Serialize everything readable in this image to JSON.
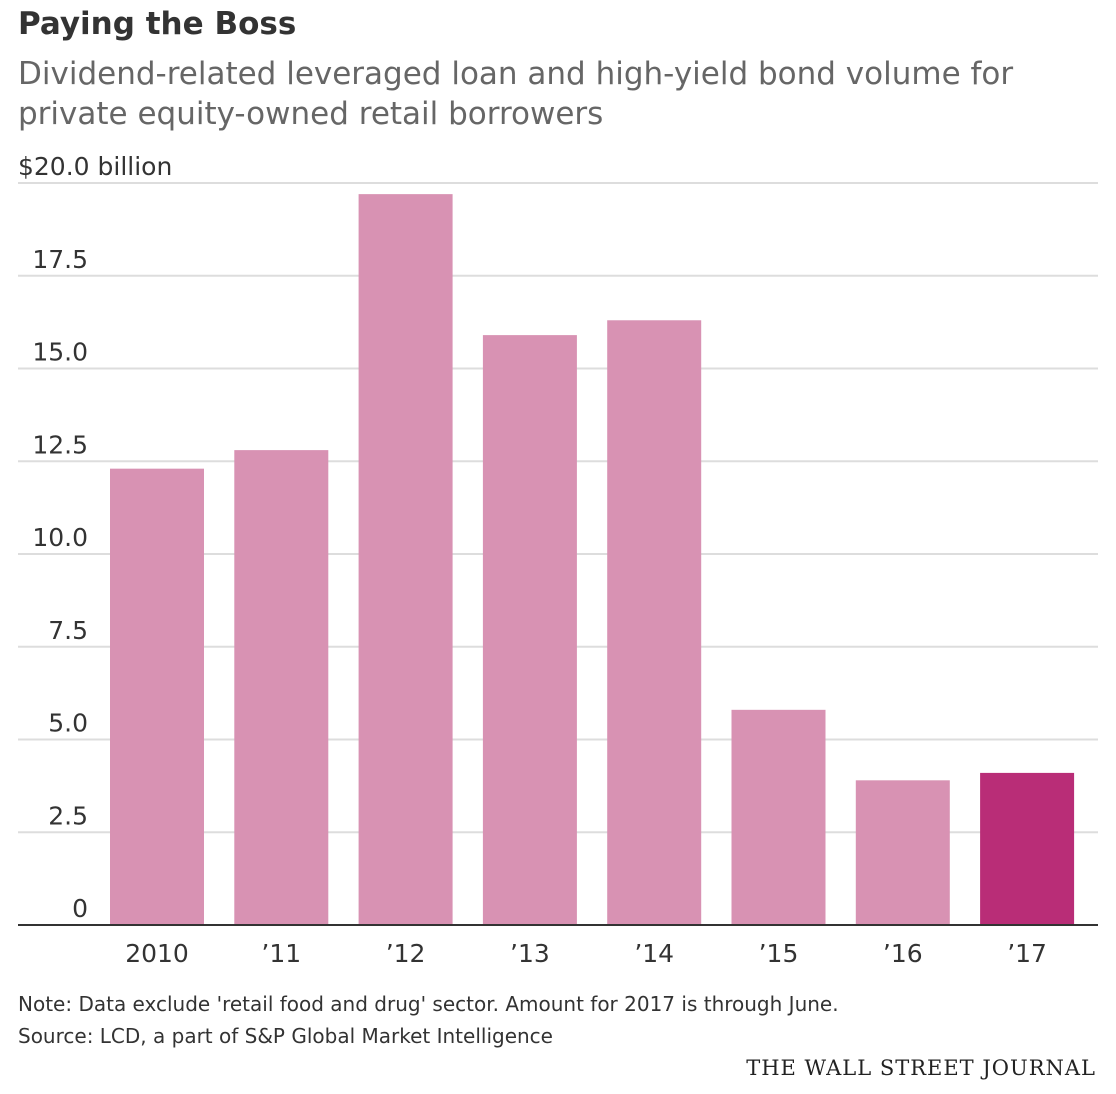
{
  "header": {
    "title": "Paying the Boss",
    "subtitle": "Dividend-related leveraged loan and high-yield bond volume for private equity-owned retail borrowers"
  },
  "footer": {
    "note": "Note: Data exclude 'retail food and drug' sector. Amount for 2017 is through June.",
    "source": "Source: LCD, a part of S&P Global Market Intelligence",
    "brand": "THE WALL STREET JOURNAL"
  },
  "colors": {
    "bar": "#d892b3",
    "highlight": "#b92d77",
    "grid": "#dddddd",
    "axis": "#333333"
  },
  "chart_data": {
    "type": "bar",
    "title": "Paying the Boss",
    "ylabel": "",
    "xlabel": "",
    "unit_label": "$20.0 billion",
    "categories": [
      "2010",
      "’11",
      "’12",
      "’13",
      "’14",
      "’15",
      "’16",
      "’17"
    ],
    "values": [
      12.3,
      12.8,
      19.7,
      15.9,
      16.3,
      5.8,
      3.9,
      4.1
    ],
    "highlight_index": 7,
    "ylim": [
      0,
      20
    ],
    "yticks": [
      0,
      2.5,
      5,
      7.5,
      10,
      12.5,
      15,
      17.5,
      20
    ],
    "ytick_labels": [
      "0",
      "2.5",
      "5.0",
      "7.5",
      "10.0",
      "12.5",
      "15.0",
      "17.5",
      "$20.0 billion"
    ],
    "grid": true
  }
}
